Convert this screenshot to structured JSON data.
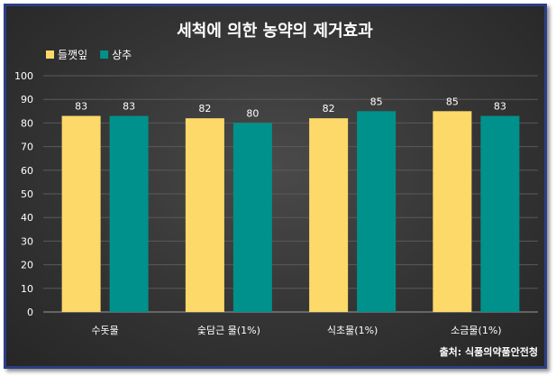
{
  "chart_data": {
    "type": "bar",
    "title": "세척에 의한 농약의 제거효과",
    "categories": [
      "수돗물",
      "숯담근 물(1%)",
      "식초물(1%)",
      "소금물(1%)"
    ],
    "series": [
      {
        "name": "들깻잎",
        "values": [
          83,
          82,
          82,
          85
        ],
        "color": "#fdd96a"
      },
      {
        "name": "상추",
        "values": [
          83,
          80,
          85,
          83
        ],
        "color": "#00918c"
      }
    ],
    "ylim": [
      0,
      100
    ],
    "yticks": [
      0,
      10,
      20,
      30,
      40,
      50,
      60,
      70,
      80,
      90,
      100
    ],
    "grid": true,
    "legend": "top-left",
    "source": "출처: 식품의약품안전청"
  }
}
